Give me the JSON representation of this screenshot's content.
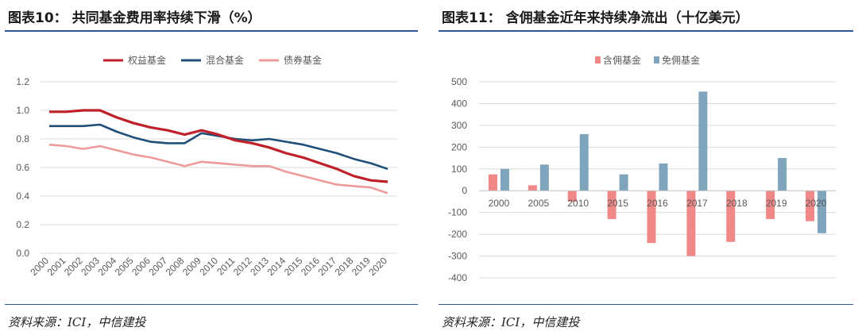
{
  "left_panel": {
    "title": "图表10： 共同基金费用率持续下滑（%）",
    "source": "资料来源：ICI，中信建投"
  },
  "right_panel": {
    "title": "图表11： 含佣基金近年来持续净流出（十亿美元）",
    "source": "资料来源：ICI，中信建投"
  },
  "colors": {
    "equity": "#c0202a",
    "hybrid": "#1f4e79",
    "bond": "#ee9a9a",
    "load": "#f08888",
    "noload": "#7fa5bd",
    "grid": "#d9d9d9",
    "axis_text": "#595959"
  },
  "chart_data": [
    {
      "type": "line",
      "title": "共同基金费用率持续下滑（%）",
      "x": [
        "2000",
        "2001",
        "2002",
        "2003",
        "2004",
        "2005",
        "2006",
        "2007",
        "2008",
        "2009",
        "2010",
        "2011",
        "2012",
        "2013",
        "2014",
        "2015",
        "2016",
        "2017",
        "2018",
        "2019",
        "2020"
      ],
      "series": [
        {
          "name": "权益基金",
          "values": [
            0.99,
            0.99,
            1.0,
            1.0,
            0.95,
            0.91,
            0.88,
            0.86,
            0.83,
            0.86,
            0.83,
            0.79,
            0.77,
            0.74,
            0.7,
            0.67,
            0.63,
            0.59,
            0.54,
            0.51,
            0.5
          ]
        },
        {
          "name": "混合基金",
          "values": [
            0.89,
            0.89,
            0.89,
            0.9,
            0.85,
            0.81,
            0.78,
            0.77,
            0.77,
            0.84,
            0.82,
            0.8,
            0.79,
            0.8,
            0.78,
            0.76,
            0.73,
            0.7,
            0.66,
            0.63,
            0.59
          ]
        },
        {
          "name": "债券基金",
          "values": [
            0.76,
            0.75,
            0.73,
            0.75,
            0.72,
            0.69,
            0.67,
            0.64,
            0.61,
            0.64,
            0.63,
            0.62,
            0.61,
            0.61,
            0.57,
            0.54,
            0.51,
            0.48,
            0.47,
            0.46,
            0.42
          ]
        }
      ],
      "ylim": [
        0,
        1.2
      ],
      "yticks": [
        "0.0",
        "0.2",
        "0.4",
        "0.6",
        "0.8",
        "1.0",
        "1.2"
      ],
      "legend": "top"
    },
    {
      "type": "bar",
      "title": "含佣基金近年来持续净流出（十亿美元）",
      "categories": [
        "2000",
        "2005",
        "2010",
        "2015",
        "2016",
        "2017",
        "2018",
        "2019",
        "2020"
      ],
      "series": [
        {
          "name": "含佣基金",
          "values": [
            75,
            25,
            -50,
            -130,
            -240,
            -300,
            -235,
            -130,
            -140
          ]
        },
        {
          "name": "免佣基金",
          "values": [
            100,
            120,
            260,
            75,
            125,
            455,
            0,
            150,
            -195
          ]
        }
      ],
      "ylim": [
        -400,
        500
      ],
      "yticks": [
        "-400",
        "-300",
        "-200",
        "-100",
        "0",
        "100",
        "200",
        "300",
        "400",
        "500"
      ],
      "legend": "top"
    }
  ]
}
